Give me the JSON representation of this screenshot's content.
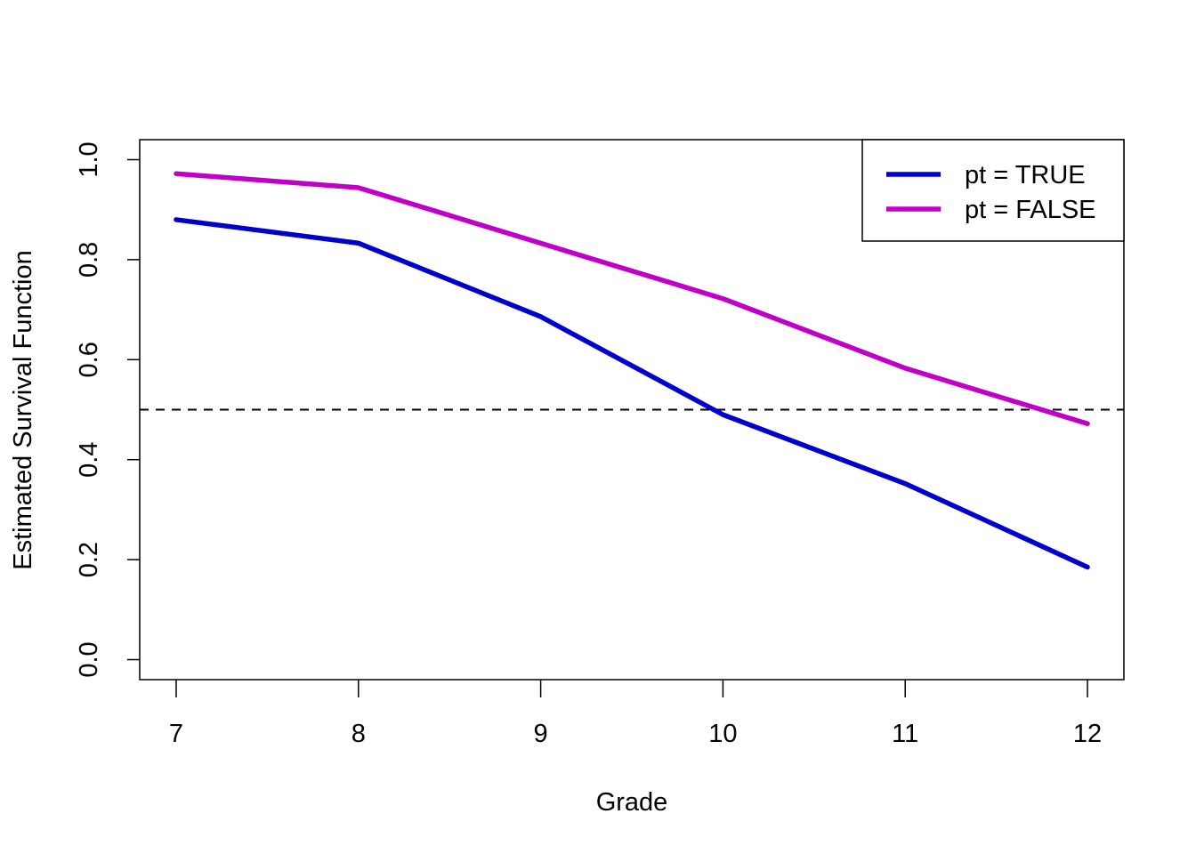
{
  "chart_data": {
    "type": "line",
    "xlabel": "Grade",
    "ylabel": "Estimated Survival Function",
    "x": [
      7,
      8,
      9,
      10,
      11,
      12
    ],
    "xlim": [
      6.8,
      12.2
    ],
    "ylim": [
      -0.04,
      1.04
    ],
    "xticks": [
      "7",
      "8",
      "9",
      "10",
      "11",
      "12"
    ],
    "yticks": [
      "0.0",
      "0.2",
      "0.4",
      "0.6",
      "0.8",
      "1.0"
    ],
    "series": [
      {
        "name": "pt = TRUE",
        "color": "#0000cd",
        "values": [
          0.88,
          0.833,
          0.686,
          0.49,
          0.352,
          0.185
        ]
      },
      {
        "name": "pt = FALSE",
        "color": "#c000c8",
        "values": [
          0.972,
          0.944,
          0.833,
          0.722,
          0.583,
          0.472
        ]
      }
    ],
    "reference_line": {
      "y": 0.5,
      "style": "dashed"
    },
    "legend": {
      "position": "top-right"
    },
    "grid": false
  }
}
